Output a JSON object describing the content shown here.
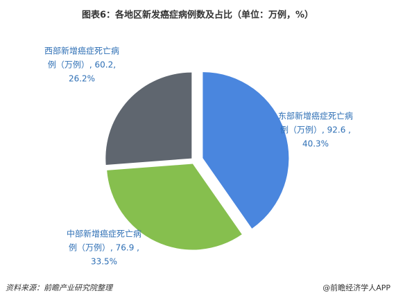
{
  "chart_data": {
    "type": "pie",
    "title": "图表6：各地区新发癌症病例数及占比（单位：万例，%）",
    "values": [
      92.6,
      76.9,
      60.2
    ],
    "value_labels": [
      [
        "东部新增癌症死亡病",
        "例（万例）, 92.6 ,",
        "40.3%"
      ],
      [
        "中部新增癌症死亡病",
        "例（万例）, 76.9 ,",
        "33.5%"
      ],
      [
        "西部新增癌症死亡病",
        "例（万例）, 60.2,",
        "26.2%"
      ]
    ],
    "colors": [
      "#4a86de",
      "#86bf4e",
      "#5f666f"
    ],
    "source": "资料来源：前瞻产业研究院整理",
    "credit": "@前瞻经济学人APP"
  }
}
